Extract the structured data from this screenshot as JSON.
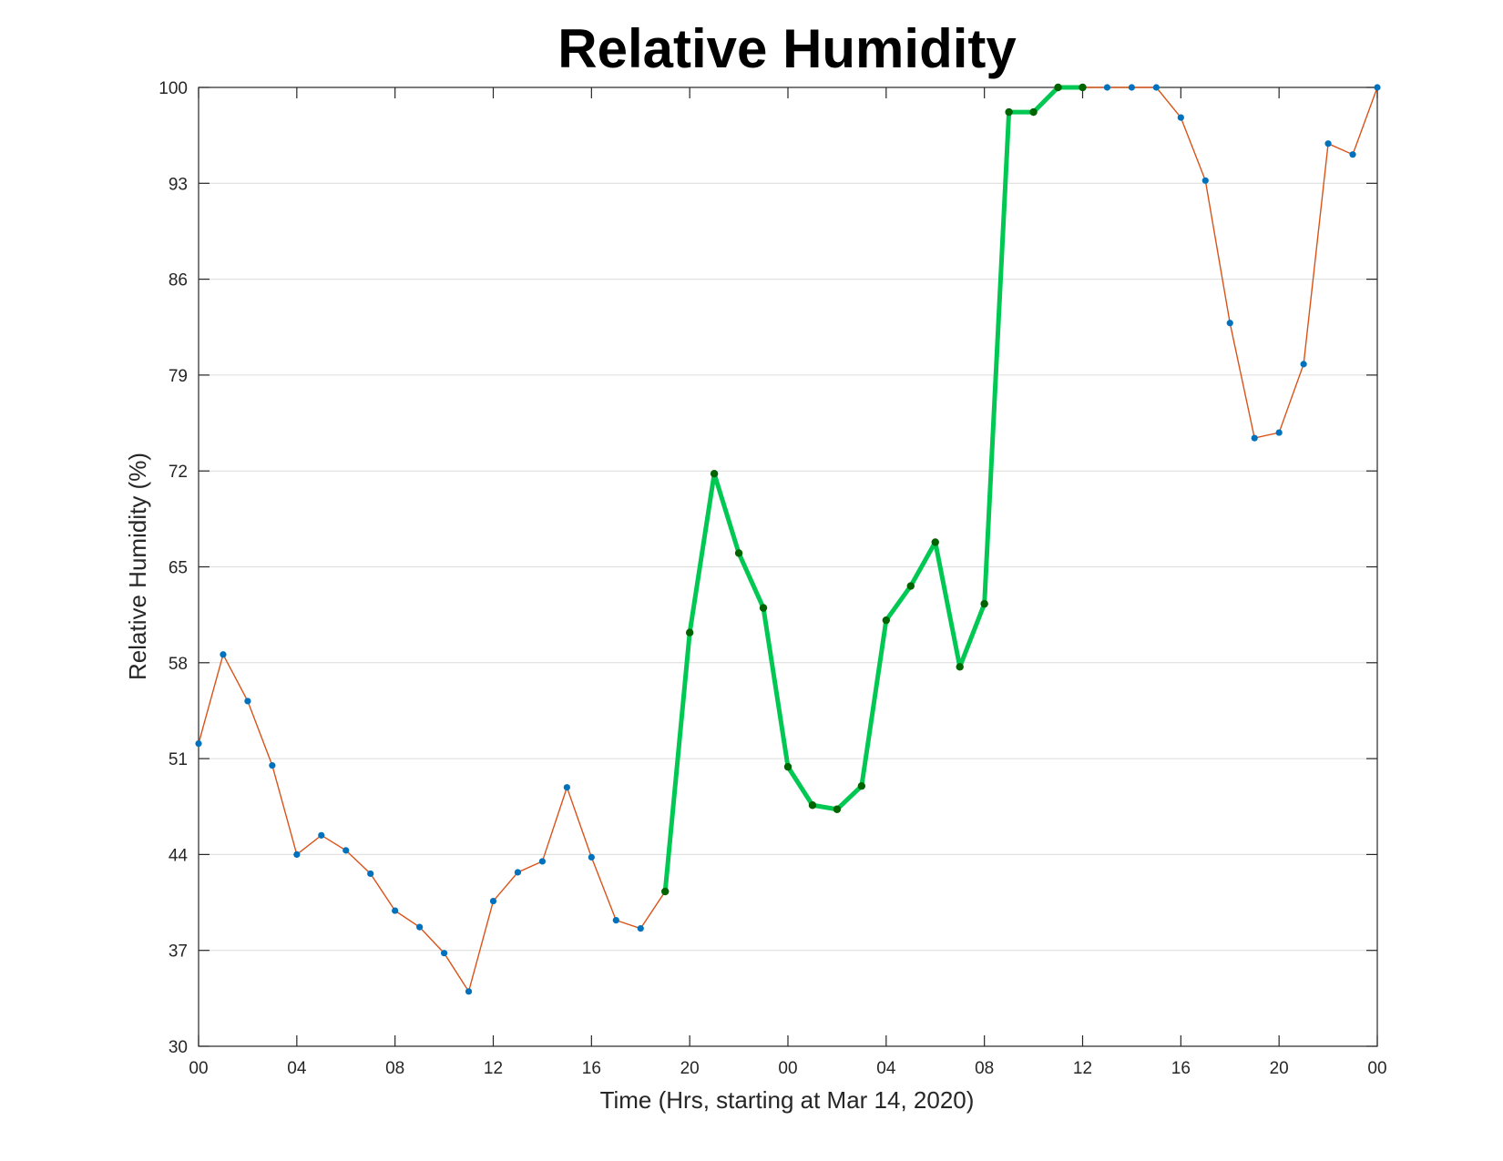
{
  "chart_data": {
    "type": "line",
    "title": "Relative Humidity",
    "xlabel": "Time (Hrs, starting at Mar 14, 2020)",
    "ylabel": "Relative Humidity (%)",
    "x_unit": "hour",
    "x_start": "2020-03-14 00:00",
    "xlim": [
      0,
      48
    ],
    "ylim": [
      30,
      100
    ],
    "grid": "horizontal",
    "x_ticks": [
      0,
      4,
      8,
      12,
      16,
      20,
      24,
      28,
      32,
      36,
      40,
      44,
      48
    ],
    "x_tick_labels": [
      "00",
      "04",
      "08",
      "12",
      "16",
      "20",
      "00",
      "04",
      "08",
      "12",
      "16",
      "20",
      "00"
    ],
    "y_ticks": [
      30,
      37,
      44,
      51,
      58,
      65,
      72,
      79,
      86,
      93,
      100
    ],
    "y_tick_labels": [
      "30",
      "37",
      "44",
      "51",
      "58",
      "65",
      "72",
      "79",
      "86",
      "93",
      "100"
    ],
    "x": [
      0,
      1,
      2,
      3,
      4,
      5,
      6,
      7,
      8,
      9,
      10,
      11,
      12,
      13,
      14,
      15,
      16,
      17,
      18,
      19,
      20,
      21,
      22,
      23,
      24,
      25,
      26,
      27,
      28,
      29,
      30,
      31,
      32,
      33,
      34,
      35,
      36,
      37,
      38,
      39,
      40,
      41,
      42,
      43,
      44,
      45,
      46,
      47,
      48
    ],
    "values": [
      52.1,
      58.6,
      55.2,
      50.5,
      44.0,
      45.4,
      44.3,
      42.6,
      39.9,
      38.7,
      36.8,
      34.0,
      40.6,
      42.7,
      43.5,
      48.9,
      43.8,
      39.2,
      38.6,
      41.3,
      60.2,
      71.8,
      66.0,
      62.0,
      50.4,
      47.6,
      47.3,
      49.0,
      61.1,
      63.6,
      66.8,
      57.7,
      62.3,
      98.2,
      98.2,
      100.0,
      100.0,
      100.0,
      100.0,
      100.0,
      97.8,
      93.2,
      82.8,
      74.4,
      74.8,
      79.8,
      95.9,
      95.1,
      100.0
    ],
    "highlight_range": [
      19,
      36
    ],
    "colors": {
      "line": "#d95319",
      "marker": "#0072bd",
      "highlight_line": "#00c853",
      "highlight_marker": "#006400"
    }
  }
}
